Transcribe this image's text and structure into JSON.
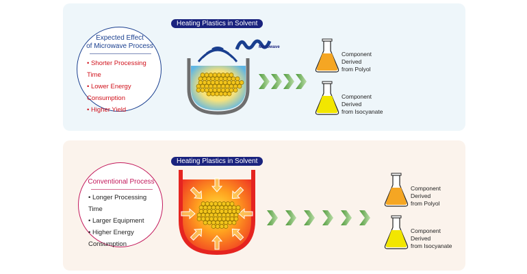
{
  "microwave": {
    "circle_title_1": "Expected Effect",
    "circle_title_2": "of Microwave Process",
    "benefits": [
      "• Shorter Processing Time",
      "• Lower Energy Consumption",
      "• Higher Yield"
    ],
    "label": "Heating Plastics in Solvent",
    "microwave_label": "Microwave",
    "flasks": [
      {
        "line1": "Component",
        "line2": "Derived",
        "line3": "from Polyol",
        "color": "#f5a623"
      },
      {
        "line1": "Component",
        "line2": "Derived",
        "line3": "from Isocyanate",
        "color": "#f2e600"
      }
    ],
    "accent": "#1a3f8f",
    "text_color": "#d0111b"
  },
  "conventional": {
    "circle_title": "Conventional Process",
    "drawbacks": [
      "• Longer Processing Time",
      "• Larger Equipment",
      "• Higher Energy Consumption"
    ],
    "label": "Heating Plastics in Solvent",
    "flasks": [
      {
        "line1": "Component",
        "line2": "Derived",
        "line3": "from Polyol",
        "color": "#f5a623"
      },
      {
        "line1": "Component",
        "line2": "Derived",
        "line3": "from Isocyanate",
        "color": "#f2e600"
      }
    ],
    "accent": "#c2185b"
  }
}
